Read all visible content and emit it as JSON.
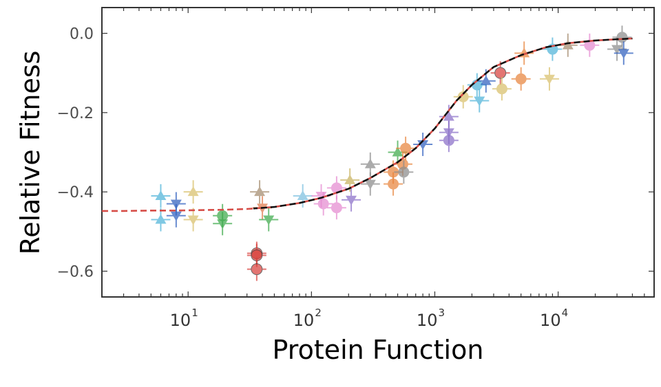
{
  "chart_data": {
    "type": "scatter",
    "title": "",
    "xlabel": "Protein Function",
    "ylabel": "Relative Fitness",
    "x_scale": "log",
    "xlim": [
      2,
      60000
    ],
    "ylim": [
      -0.665,
      0.065
    ],
    "y_ticks": [
      {
        "value": 0.0,
        "label": "0.0"
      },
      {
        "value": -0.2,
        "label": "−0.2"
      },
      {
        "value": -0.4,
        "label": "−0.4"
      },
      {
        "value": -0.6,
        "label": "−0.6"
      }
    ],
    "x_ticks": [
      {
        "value": 10,
        "base": "10",
        "exp": "1"
      },
      {
        "value": 100,
        "base": "10",
        "exp": "2"
      },
      {
        "value": 1000,
        "base": "10",
        "exp": "3"
      },
      {
        "value": 10000,
        "base": "10",
        "exp": "4"
      }
    ],
    "grid": false,
    "fit_curve": {
      "style": "dashed",
      "colors": [
        "#d64d47",
        "#111111"
      ],
      "x": [
        2,
        3,
        5,
        8,
        12,
        20,
        30,
        50,
        80,
        120,
        200,
        300,
        500,
        700,
        1000,
        1500,
        2000,
        3000,
        5000,
        8000,
        12000,
        20000,
        30000,
        40000
      ],
      "y": [
        -0.448,
        -0.448,
        -0.447,
        -0.447,
        -0.446,
        -0.445,
        -0.443,
        -0.438,
        -0.428,
        -0.415,
        -0.392,
        -0.365,
        -0.325,
        -0.29,
        -0.24,
        -0.17,
        -0.13,
        -0.085,
        -0.055,
        -0.035,
        -0.025,
        -0.018,
        -0.015,
        -0.013
      ]
    },
    "points": [
      {
        "x": 6,
        "y": -0.41,
        "marker": "triangle-up",
        "color": "#4fb3d9"
      },
      {
        "x": 6,
        "y": -0.47,
        "marker": "triangle-up",
        "color": "#4fb3d9"
      },
      {
        "x": 8,
        "y": -0.43,
        "marker": "triangle-down",
        "color": "#2f5fbf"
      },
      {
        "x": 8,
        "y": -0.46,
        "marker": "triangle-down",
        "color": "#2f5fbf"
      },
      {
        "x": 11,
        "y": -0.4,
        "marker": "triangle-up",
        "color": "#d9c06a"
      },
      {
        "x": 11,
        "y": -0.47,
        "marker": "triangle-down",
        "color": "#d9c06a"
      },
      {
        "x": 19,
        "y": -0.46,
        "marker": "circle",
        "color": "#3caa4b"
      },
      {
        "x": 19,
        "y": -0.48,
        "marker": "triangle-down",
        "color": "#3caa4b"
      },
      {
        "x": 36,
        "y": -0.555,
        "marker": "circle",
        "color": "#d9413c"
      },
      {
        "x": 36,
        "y": -0.56,
        "marker": "circle",
        "color": "#d9413c"
      },
      {
        "x": 36,
        "y": -0.595,
        "marker": "circle",
        "color": "#d9413c"
      },
      {
        "x": 38,
        "y": -0.4,
        "marker": "triangle-up",
        "color": "#a58c6e"
      },
      {
        "x": 40,
        "y": -0.44,
        "marker": "triangle-down",
        "color": "#e0794a"
      },
      {
        "x": 45,
        "y": -0.47,
        "marker": "triangle-down",
        "color": "#3caa4b"
      },
      {
        "x": 85,
        "y": -0.41,
        "marker": "triangle-up",
        "color": "#7cc0e0"
      },
      {
        "x": 120,
        "y": -0.41,
        "marker": "triangle-down",
        "color": "#e68ad1"
      },
      {
        "x": 125,
        "y": -0.43,
        "marker": "circle",
        "color": "#e68ad1"
      },
      {
        "x": 160,
        "y": -0.39,
        "marker": "circle",
        "color": "#e68ad1"
      },
      {
        "x": 160,
        "y": -0.44,
        "marker": "circle",
        "color": "#e68ad1"
      },
      {
        "x": 205,
        "y": -0.37,
        "marker": "triangle-up",
        "color": "#c9b25e"
      },
      {
        "x": 210,
        "y": -0.42,
        "marker": "triangle-down",
        "color": "#8a6fc8"
      },
      {
        "x": 300,
        "y": -0.33,
        "marker": "triangle-up",
        "color": "#8c8c8c"
      },
      {
        "x": 300,
        "y": -0.38,
        "marker": "triangle-down",
        "color": "#8c8c8c"
      },
      {
        "x": 460,
        "y": -0.35,
        "marker": "circle",
        "color": "#e8843c"
      },
      {
        "x": 460,
        "y": -0.38,
        "marker": "circle",
        "color": "#e8843c"
      },
      {
        "x": 500,
        "y": -0.3,
        "marker": "triangle-up",
        "color": "#3caa4b"
      },
      {
        "x": 550,
        "y": -0.33,
        "marker": "circle",
        "color": "#e8843c"
      },
      {
        "x": 560,
        "y": -0.35,
        "marker": "circle",
        "color": "#8c8c8c"
      },
      {
        "x": 580,
        "y": -0.29,
        "marker": "circle",
        "color": "#e8843c"
      },
      {
        "x": 800,
        "y": -0.28,
        "marker": "triangle-down",
        "color": "#2f5fbf"
      },
      {
        "x": 1300,
        "y": -0.21,
        "marker": "triangle-up",
        "color": "#8a6fc8"
      },
      {
        "x": 1300,
        "y": -0.25,
        "marker": "triangle-down",
        "color": "#8a6fc8"
      },
      {
        "x": 1300,
        "y": -0.27,
        "marker": "circle",
        "color": "#8a6fc8"
      },
      {
        "x": 1700,
        "y": -0.16,
        "marker": "circle",
        "color": "#d9c06a"
      },
      {
        "x": 2200,
        "y": -0.13,
        "marker": "circle",
        "color": "#4fb3d9"
      },
      {
        "x": 2300,
        "y": -0.17,
        "marker": "triangle-down",
        "color": "#4fb3d9"
      },
      {
        "x": 2600,
        "y": -0.12,
        "marker": "triangle-up",
        "color": "#2f5fbf"
      },
      {
        "x": 3400,
        "y": -0.1,
        "marker": "circle",
        "color": "#d9413c"
      },
      {
        "x": 3500,
        "y": -0.14,
        "marker": "circle",
        "color": "#d9c06a"
      },
      {
        "x": 5000,
        "y": -0.115,
        "marker": "circle",
        "color": "#e8843c"
      },
      {
        "x": 5300,
        "y": -0.05,
        "marker": "triangle-up",
        "color": "#e8843c"
      },
      {
        "x": 8500,
        "y": -0.115,
        "marker": "triangle-down",
        "color": "#d9c06a"
      },
      {
        "x": 9000,
        "y": -0.04,
        "marker": "circle",
        "color": "#4fb3d9"
      },
      {
        "x": 12000,
        "y": -0.03,
        "marker": "triangle-up",
        "color": "#a58c6e"
      },
      {
        "x": 18000,
        "y": -0.03,
        "marker": "circle",
        "color": "#e68ad1"
      },
      {
        "x": 30000,
        "y": -0.04,
        "marker": "triangle-down",
        "color": "#8c8c8c"
      },
      {
        "x": 33000,
        "y": -0.01,
        "marker": "circle",
        "color": "#8c8c8c"
      },
      {
        "x": 34000,
        "y": -0.05,
        "marker": "triangle-down",
        "color": "#2f5fbf"
      }
    ]
  }
}
